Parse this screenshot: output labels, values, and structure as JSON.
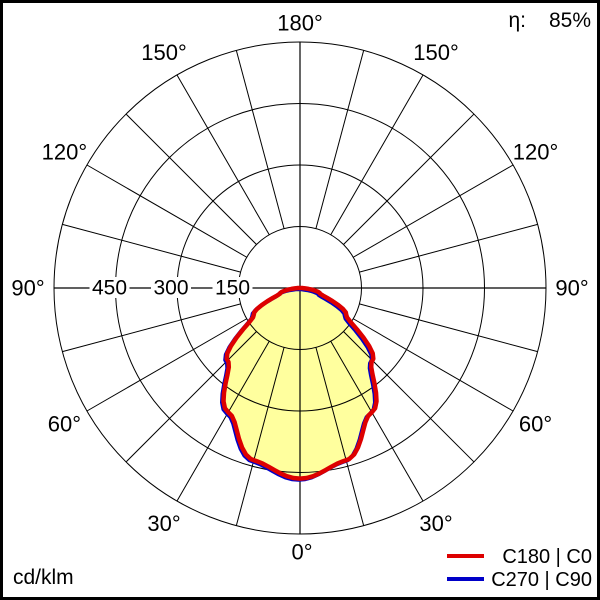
{
  "meta": {
    "efficiency_label": "η:",
    "efficiency_value": "85%",
    "unit": "cd/klm"
  },
  "legend": [
    {
      "label": "C180 | C0",
      "color": "#dd0000"
    },
    {
      "label": "C270 | C90",
      "color": "#0000c8"
    }
  ],
  "chart_data": {
    "type": "area",
    "coordinate_system": "polar",
    "description": "Luminous intensity distribution curve; 0° at nadir (bottom), angles increase symmetrically toward 180° at top",
    "angle_ticks_deg": [
      0,
      30,
      60,
      90,
      120,
      150,
      180
    ],
    "angle_tick_labels": [
      "0°",
      "30°",
      "60°",
      "90°",
      "120°",
      "150°",
      "180°"
    ],
    "radial_ticks": [
      150,
      300,
      450
    ],
    "radial_tick_labels": [
      "150",
      "300",
      "450"
    ],
    "radial_max": 600,
    "radial_unit": "cd/klm",
    "grid_step_deg": 15,
    "gamma_deg": [
      0,
      15,
      30,
      45,
      60,
      75,
      90,
      105,
      120,
      135,
      150,
      165,
      180
    ],
    "series": [
      {
        "name": "C180 | C0",
        "color": "#dd0000",
        "fill": "#ffff9e",
        "values": [
          465,
          435,
          350,
          250,
          130,
          50,
          5,
          0,
          0,
          0,
          0,
          0,
          0
        ]
      },
      {
        "name": "C270 | C90",
        "color": "#0000c8",
        "fill": null,
        "values": [
          465,
          435,
          350,
          250,
          130,
          50,
          5,
          0,
          0,
          0,
          0,
          0,
          0
        ]
      }
    ],
    "efficiency_percent": 85,
    "legend_position": "bottom-right",
    "grid": true
  }
}
